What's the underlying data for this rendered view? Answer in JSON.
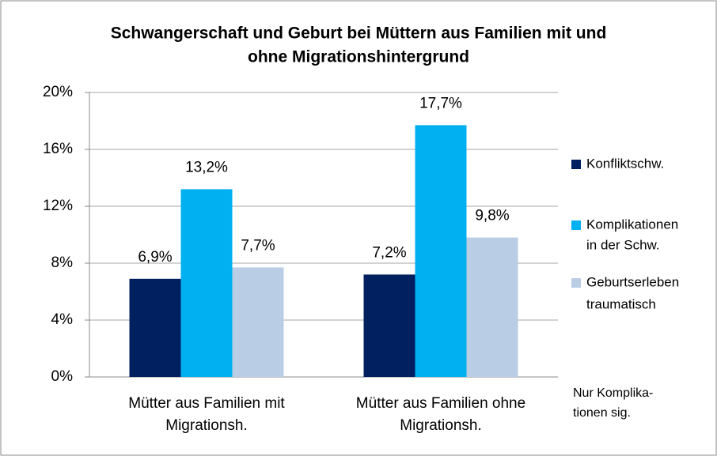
{
  "chart_data": {
    "type": "bar",
    "title": [
      "Schwangerschaft und Geburt bei Müttern aus Familien mit  und",
      "ohne Migrationshintergrund"
    ],
    "categories": [
      [
        "Mütter aus Familien mit",
        "Migrationsh."
      ],
      [
        "Mütter aus Familien ohne",
        "Migrationsh."
      ]
    ],
    "series": [
      {
        "name": [
          "Konfliktschw."
        ],
        "color": "#002060",
        "values": [
          6.9,
          7.2
        ],
        "value_labels": [
          "6,9%",
          "7,2%"
        ]
      },
      {
        "name": [
          "Komplikationen",
          "in der Schw."
        ],
        "color": "#00b0f0",
        "values": [
          13.2,
          17.7
        ],
        "value_labels": [
          "13,2%",
          "17,7%"
        ]
      },
      {
        "name": [
          "Geburtserleben",
          "traumatisch"
        ],
        "color": "#b9cde5",
        "values": [
          7.7,
          9.8
        ],
        "value_labels": [
          "7,7%",
          "9,8%"
        ]
      }
    ],
    "ylim": [
      0,
      20
    ],
    "yticks": [
      {
        "value": 0,
        "label": "0%"
      },
      {
        "value": 4,
        "label": "4%"
      },
      {
        "value": 8,
        "label": "8%"
      },
      {
        "value": 12,
        "label": "12%"
      },
      {
        "value": 16,
        "label": "16%"
      },
      {
        "value": 20,
        "label": "20%"
      }
    ],
    "grid": true,
    "legend": "right",
    "annotation": [
      "Nur Komplika-",
      "tionen sig."
    ]
  }
}
